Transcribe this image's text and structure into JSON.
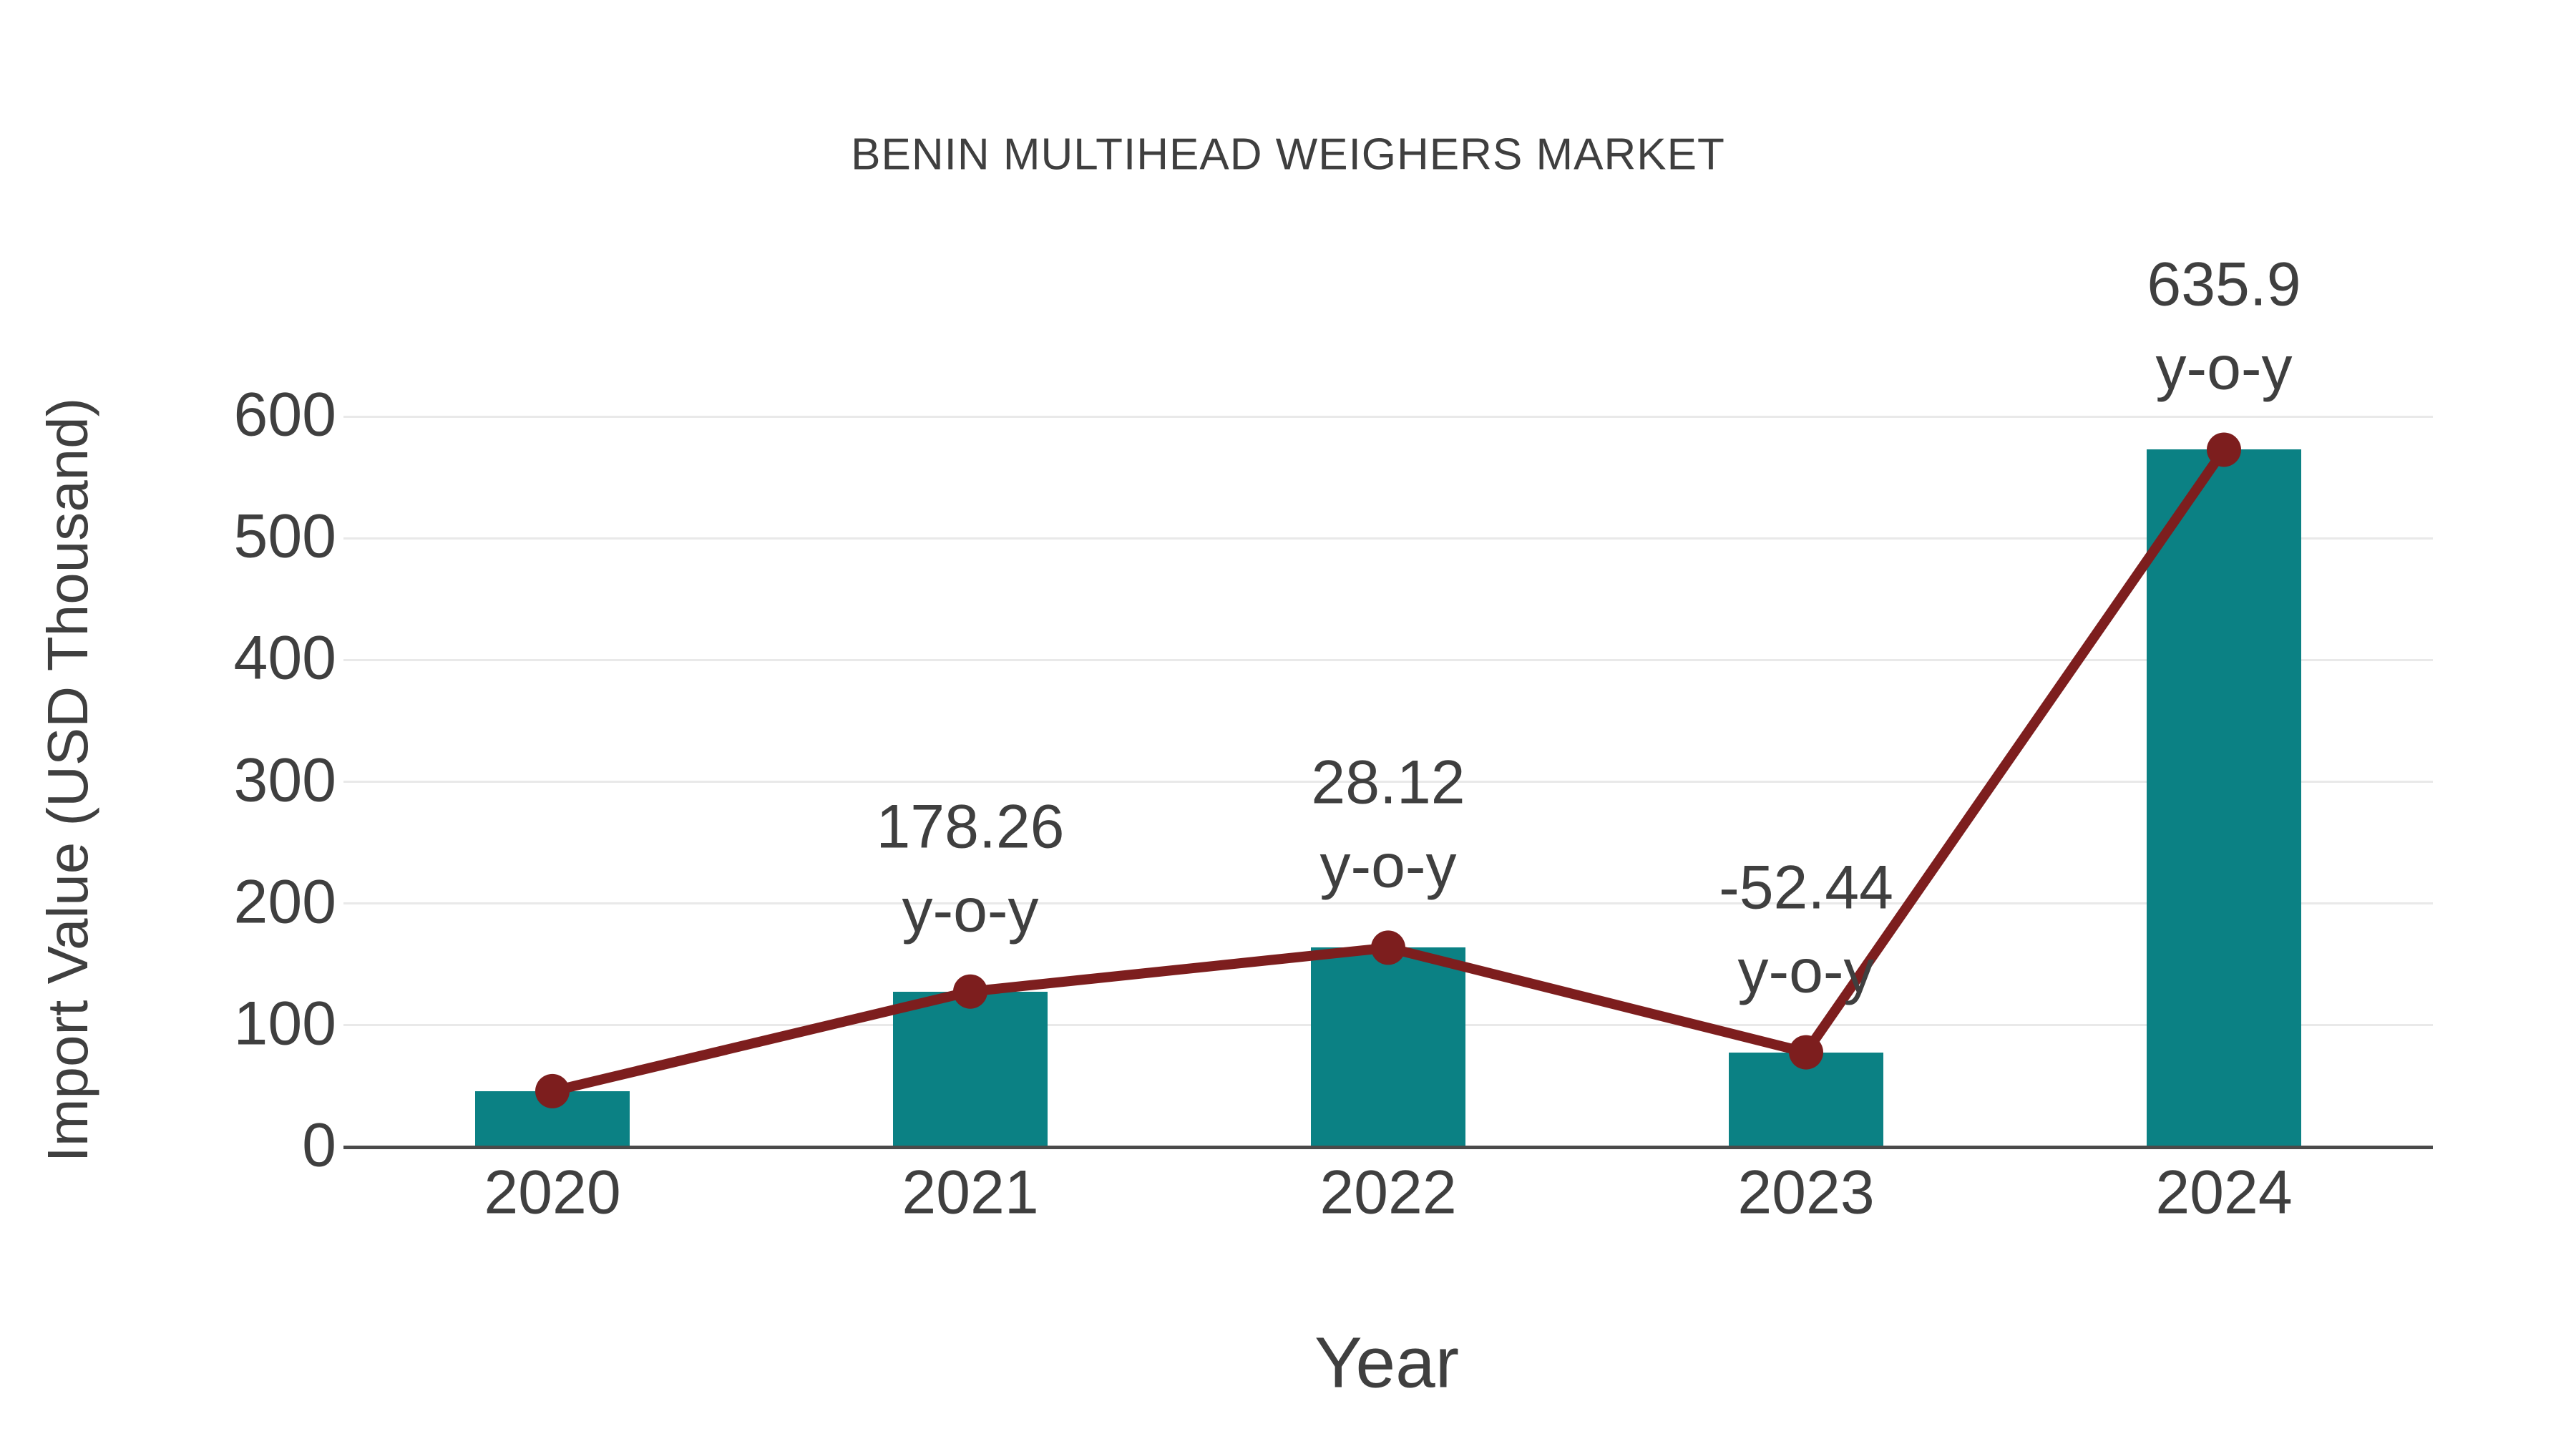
{
  "title": "BENIN MULTIHEAD WEIGHERS MARKET",
  "chart_data": {
    "type": "bar",
    "subtype": "bars-with-overlaid-line-and-markers",
    "title": "BENIN MULTIHEAD WEIGHERS MARKET",
    "xlabel": "Year",
    "ylabel": "Import Value (USD Thousand)",
    "categories": [
      "2020",
      "2021",
      "2022",
      "2023",
      "2024"
    ],
    "series": [
      {
        "name": "Import Value bars",
        "type": "bar",
        "values": [
          45.9,
          127.7,
          163.7,
          77.8,
          572.7
        ]
      },
      {
        "name": "Import Value trend line",
        "type": "line",
        "values": [
          45.9,
          127.7,
          163.7,
          77.8,
          572.7
        ]
      }
    ],
    "annotations": [
      {
        "category": "2021",
        "value_label": "178.26",
        "unit_label": "y-o-y"
      },
      {
        "category": "2022",
        "value_label": "28.12",
        "unit_label": "y-o-y"
      },
      {
        "category": "2023",
        "value_label": "-52.44",
        "unit_label": "y-o-y"
      },
      {
        "category": "2024",
        "value_label": "635.9",
        "unit_label": "y-o-y"
      }
    ],
    "ylim": [
      0,
      600
    ],
    "yticks": [
      0,
      100,
      200,
      300,
      400,
      500,
      600
    ],
    "grid": "horizontal",
    "legend": "none",
    "colors": {
      "bar": "#0b8184",
      "line": "#7d1e1e",
      "marker": "#7d1e1e",
      "grid": "#e9e9e9",
      "axis": "#4a4a4a",
      "text": "#3f3f3f"
    }
  }
}
